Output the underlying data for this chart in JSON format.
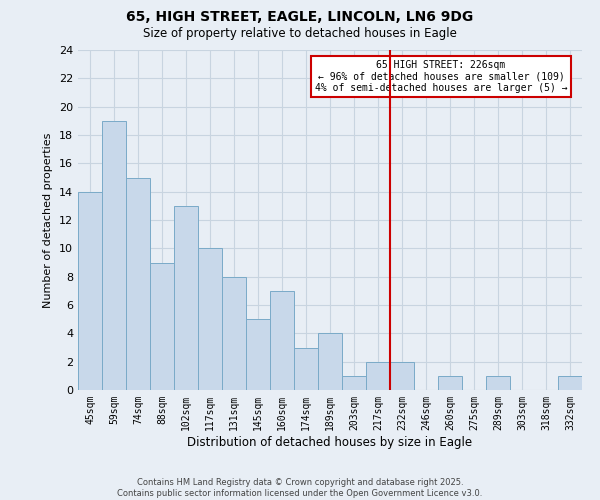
{
  "title": "65, HIGH STREET, EAGLE, LINCOLN, LN6 9DG",
  "subtitle": "Size of property relative to detached houses in Eagle",
  "xlabel": "Distribution of detached houses by size in Eagle",
  "ylabel": "Number of detached properties",
  "categories": [
    "45sqm",
    "59sqm",
    "74sqm",
    "88sqm",
    "102sqm",
    "117sqm",
    "131sqm",
    "145sqm",
    "160sqm",
    "174sqm",
    "189sqm",
    "203sqm",
    "217sqm",
    "232sqm",
    "246sqm",
    "260sqm",
    "275sqm",
    "289sqm",
    "303sqm",
    "318sqm",
    "332sqm"
  ],
  "values": [
    14,
    19,
    15,
    9,
    13,
    10,
    8,
    5,
    7,
    3,
    4,
    1,
    2,
    2,
    0,
    1,
    0,
    1,
    0,
    0,
    1
  ],
  "bar_color": "#c8d8ea",
  "bar_edge_color": "#7aaac8",
  "vline_color": "#cc0000",
  "vline_index": 13,
  "ylim": [
    0,
    24
  ],
  "yticks": [
    0,
    2,
    4,
    6,
    8,
    10,
    12,
    14,
    16,
    18,
    20,
    22,
    24
  ],
  "annotation_title": "65 HIGH STREET: 226sqm",
  "annotation_line1": "← 96% of detached houses are smaller (109)",
  "annotation_line2": "4% of semi-detached houses are larger (5) →",
  "annotation_box_color": "#ffffff",
  "annotation_box_edge": "#cc0000",
  "grid_color": "#c8d4e0",
  "background_color": "#e8eef5",
  "footer1": "Contains HM Land Registry data © Crown copyright and database right 2025.",
  "footer2": "Contains public sector information licensed under the Open Government Licence v3.0."
}
